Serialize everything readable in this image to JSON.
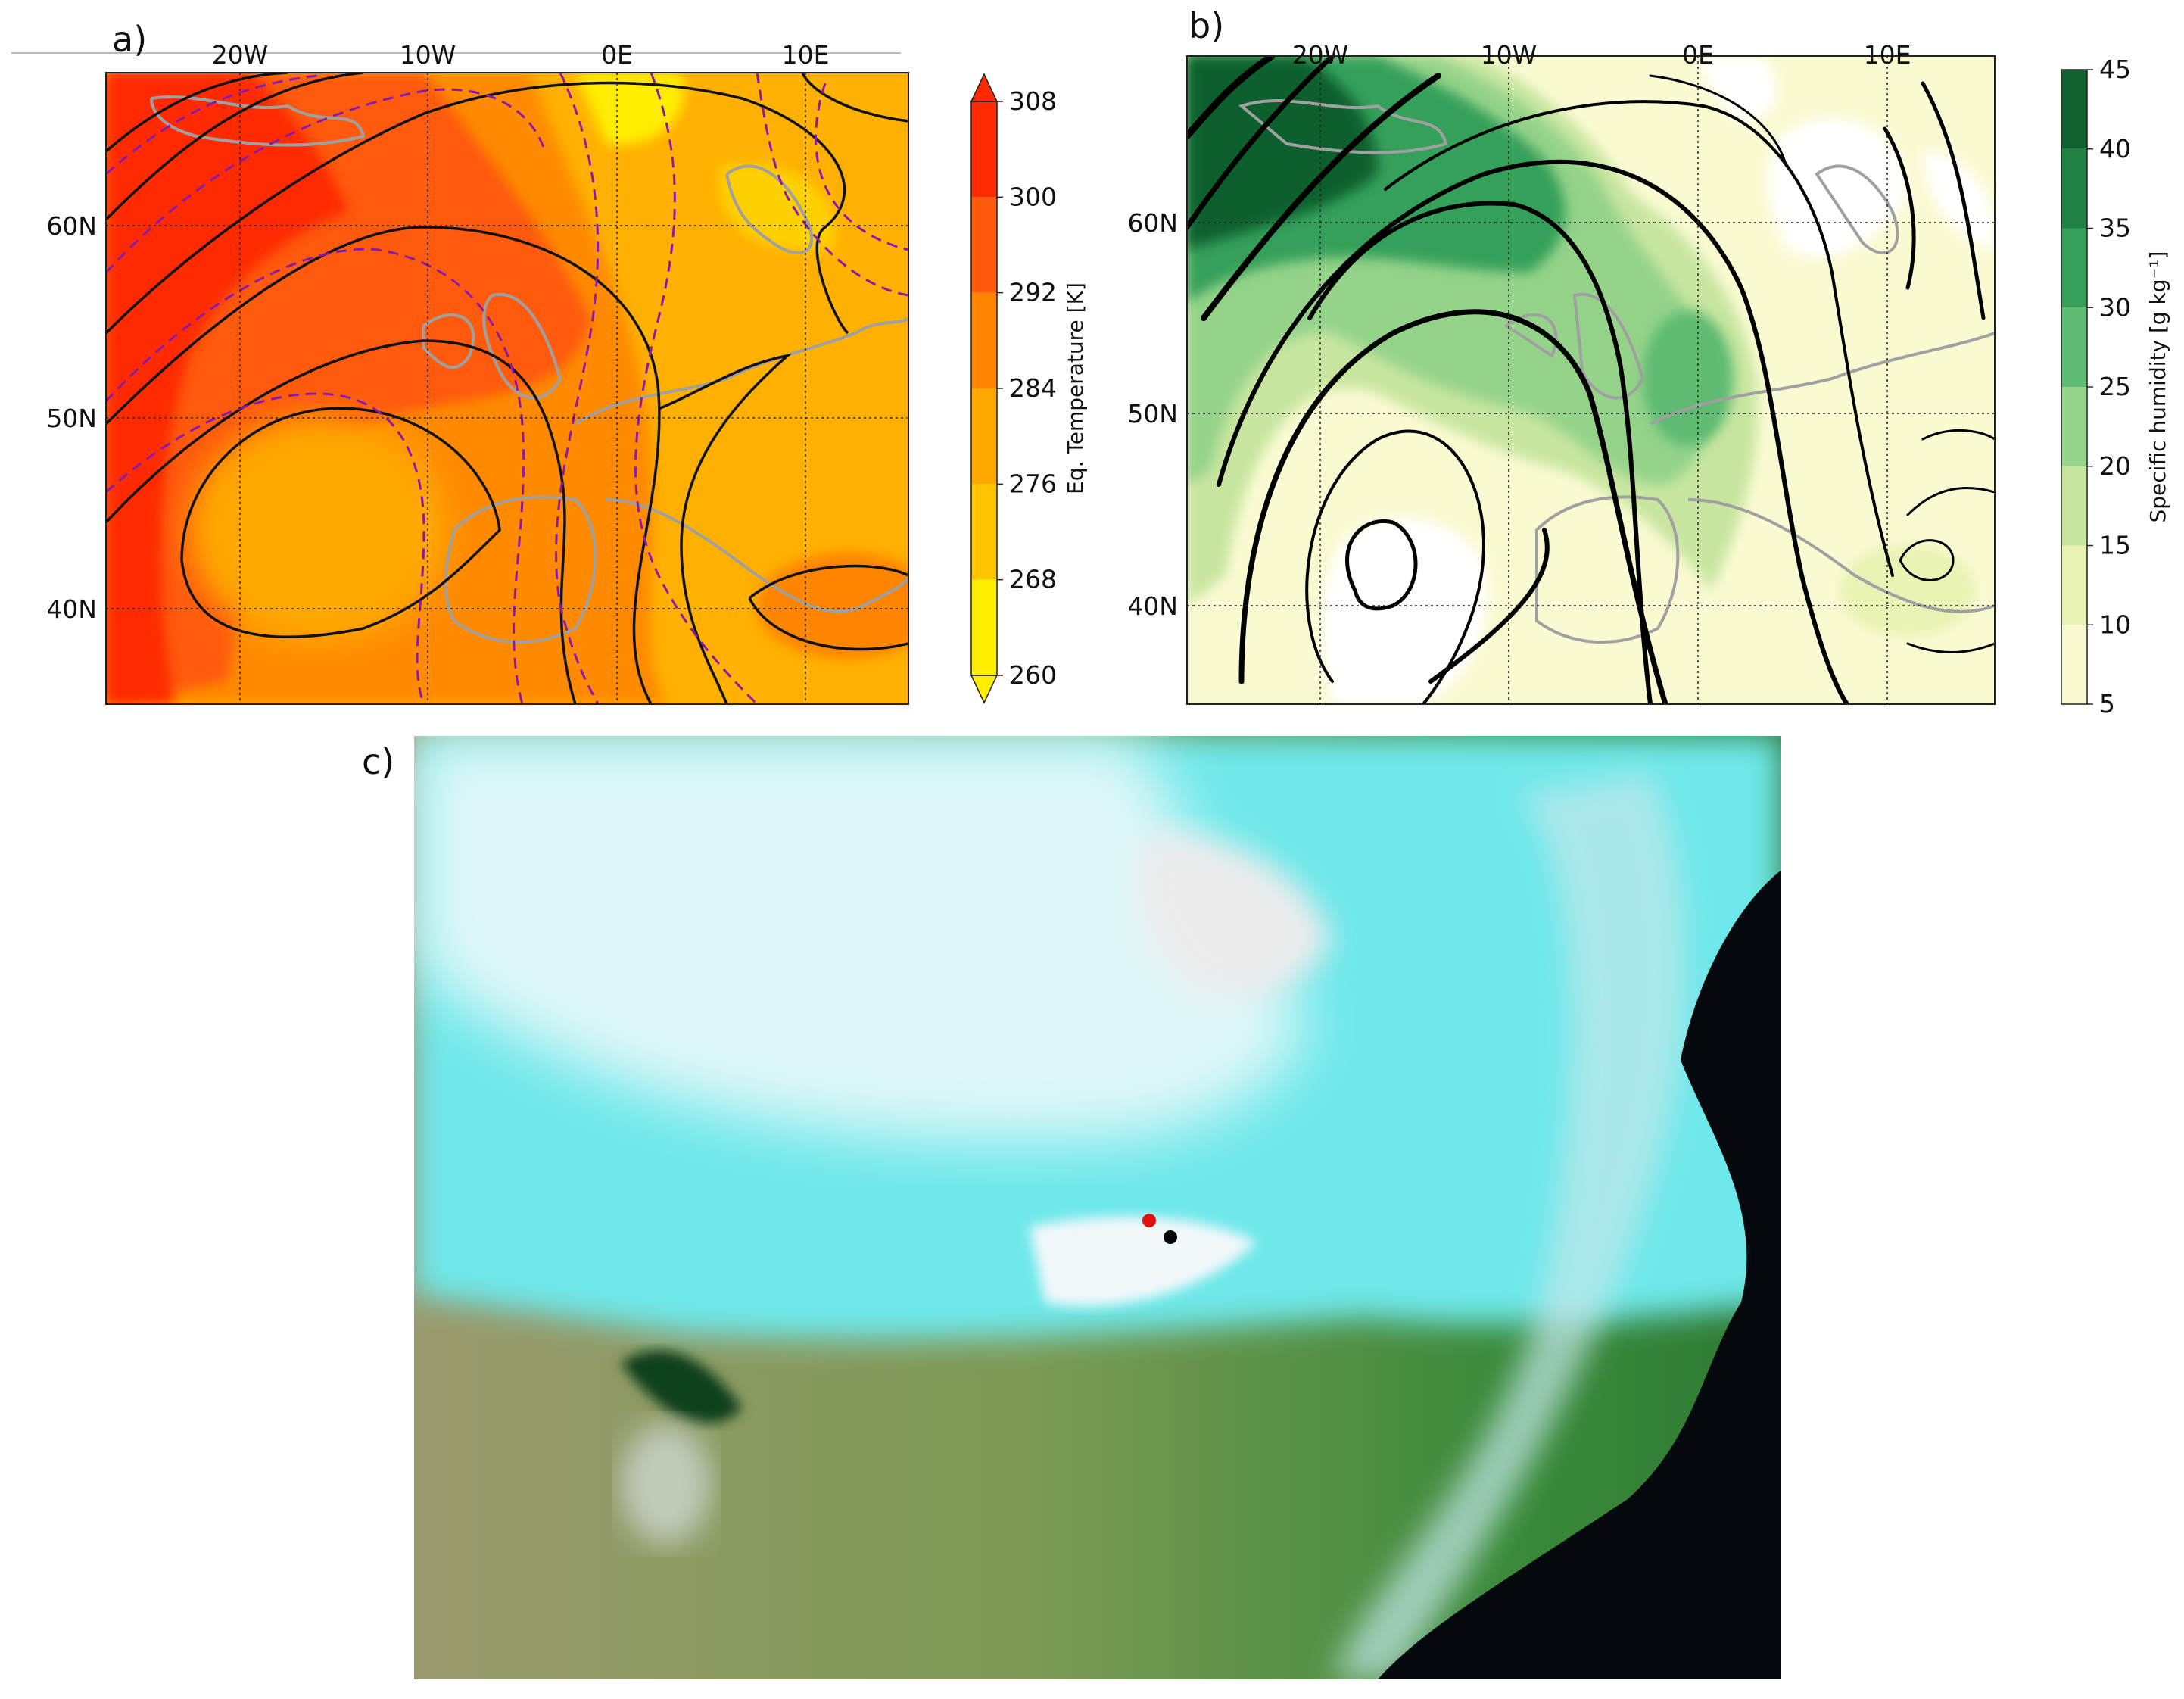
{
  "panels": [
    {
      "label": "a)",
      "lon_labels": [
        "20W",
        "10W",
        "0E",
        "10E"
      ],
      "lat_labels": [
        "60N",
        "50N",
        "40N"
      ],
      "colorbar": {
        "label": "Eq. Temperature [K]",
        "ticks": [
          260,
          268,
          276,
          284,
          292,
          300,
          308
        ],
        "colors": [
          "#ffee00",
          "#ffc400",
          "#ffa800",
          "#ff8400",
          "#ff5a0a",
          "#ff2a00"
        ],
        "extend": true
      }
    },
    {
      "label": "b)",
      "lon_labels": [
        "20W",
        "10W",
        "0E",
        "10E"
      ],
      "lat_labels": [
        "60N",
        "50N",
        "40N"
      ],
      "colorbar": {
        "label": "Specific humidity [g kg⁻¹]",
        "ticks": [
          5,
          10,
          15,
          20,
          25,
          30,
          35,
          40,
          45
        ],
        "colors": [
          "#fafad2",
          "#e8f3b4",
          "#c8e6a0",
          "#95d38a",
          "#5fbb72",
          "#36a05a",
          "#1f8244",
          "#11602f"
        ],
        "extend": false
      }
    },
    {
      "label": "c)"
    }
  ]
}
